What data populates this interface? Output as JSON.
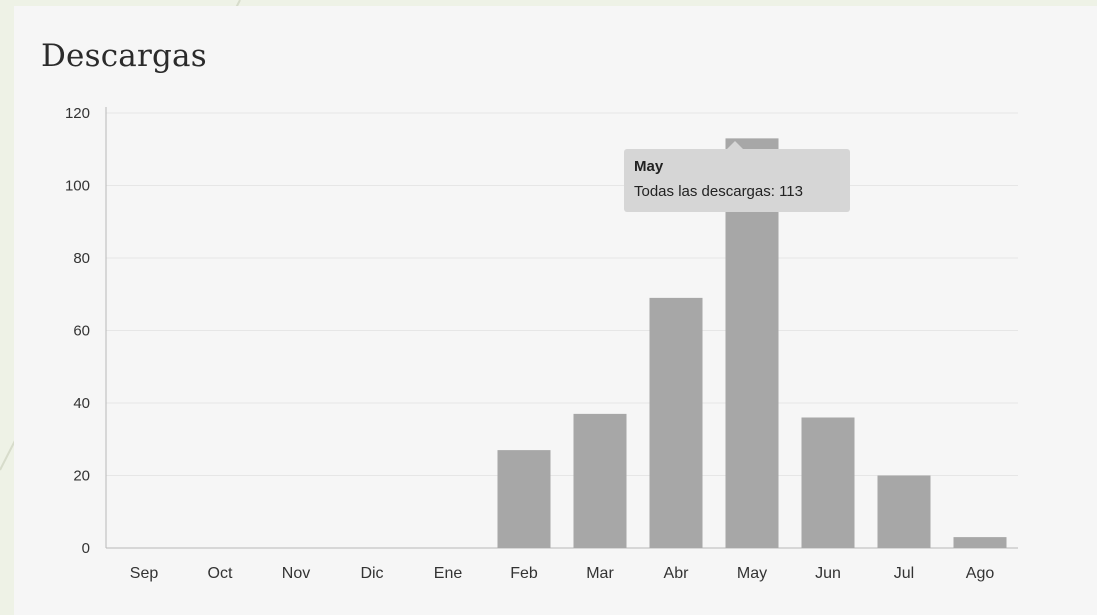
{
  "panel": {
    "title": "Descargas"
  },
  "tooltip": {
    "title": "May",
    "label": "Todas las descargas: 113"
  },
  "colors": {
    "bar": "#a7a7a7",
    "grid": "#e6e6e6",
    "axis": "#b8b8b8",
    "background": "#f6f6f6",
    "tooltip": "#d6d6d6"
  },
  "chart_data": {
    "type": "bar",
    "title": "Descargas",
    "xlabel": "",
    "ylabel": "",
    "categories": [
      "Sep",
      "Oct",
      "Nov",
      "Dic",
      "Ene",
      "Feb",
      "Mar",
      "Abr",
      "May",
      "Jun",
      "Jul",
      "Ago"
    ],
    "series": [
      {
        "values": [
          0,
          0,
          0,
          0,
          0,
          27,
          37,
          69,
          113,
          36,
          20,
          3
        ]
      }
    ],
    "ylim": [
      0,
      120
    ],
    "yticks": [
      0,
      20,
      40,
      60,
      80,
      100,
      120
    ],
    "grid": true,
    "legend": "none"
  }
}
